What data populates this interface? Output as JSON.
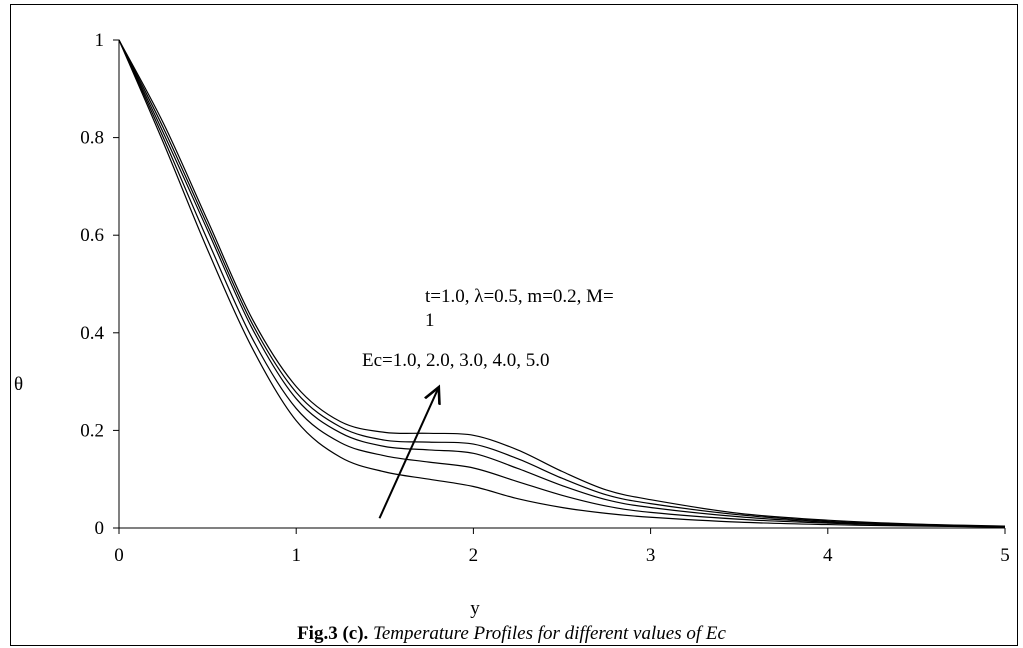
{
  "chart_data": {
    "type": "line",
    "title": "",
    "xlabel": "y",
    "ylabel": "θ",
    "xlim": [
      0,
      5
    ],
    "ylim": [
      0,
      1
    ],
    "x_ticks": [
      "0",
      "1",
      "2",
      "3",
      "4",
      "5"
    ],
    "y_ticks": [
      "0",
      "0.2",
      "0.4",
      "0.6",
      "0.8",
      "1"
    ],
    "grid": false,
    "legend": "none",
    "line_color": "#000000",
    "x": [
      0,
      0.25,
      0.5,
      0.75,
      1.0,
      1.25,
      1.5,
      1.75,
      2.0,
      2.25,
      2.5,
      2.75,
      3.0,
      3.5,
      4.0,
      4.5,
      5.0
    ],
    "series": [
      {
        "values": [
          1.0,
          0.79,
          0.57,
          0.37,
          0.22,
          0.145,
          0.115,
          0.1,
          0.085,
          0.06,
          0.042,
          0.03,
          0.022,
          0.012,
          0.007,
          0.004,
          0.002
        ]
      },
      {
        "values": [
          1.0,
          0.8,
          0.59,
          0.39,
          0.245,
          0.175,
          0.148,
          0.135,
          0.123,
          0.095,
          0.067,
          0.045,
          0.032,
          0.018,
          0.01,
          0.005,
          0.002
        ]
      },
      {
        "values": [
          1.0,
          0.81,
          0.61,
          0.41,
          0.265,
          0.195,
          0.167,
          0.16,
          0.153,
          0.122,
          0.087,
          0.058,
          0.042,
          0.023,
          0.012,
          0.006,
          0.003
        ]
      },
      {
        "values": [
          1.0,
          0.82,
          0.62,
          0.42,
          0.278,
          0.207,
          0.18,
          0.176,
          0.172,
          0.142,
          0.102,
          0.068,
          0.05,
          0.027,
          0.014,
          0.007,
          0.003
        ]
      },
      {
        "values": [
          1.0,
          0.83,
          0.63,
          0.43,
          0.29,
          0.218,
          0.196,
          0.194,
          0.19,
          0.16,
          0.116,
          0.078,
          0.058,
          0.03,
          0.016,
          0.008,
          0.004
        ]
      }
    ],
    "annotations": [
      {
        "line1": "t=1.0, λ=0.5, m=0.2, M=",
        "line2": "1"
      },
      {
        "text": "Ec=1.0, 2.0, 3.0, 4.0, 5.0"
      }
    ],
    "arrow": {
      "from": [
        1.47,
        0.02
      ],
      "to": [
        1.8,
        0.285
      ]
    }
  },
  "caption": {
    "label": "Fig.3 (c).",
    "text": " Temperature Profiles for different values of Ec"
  }
}
